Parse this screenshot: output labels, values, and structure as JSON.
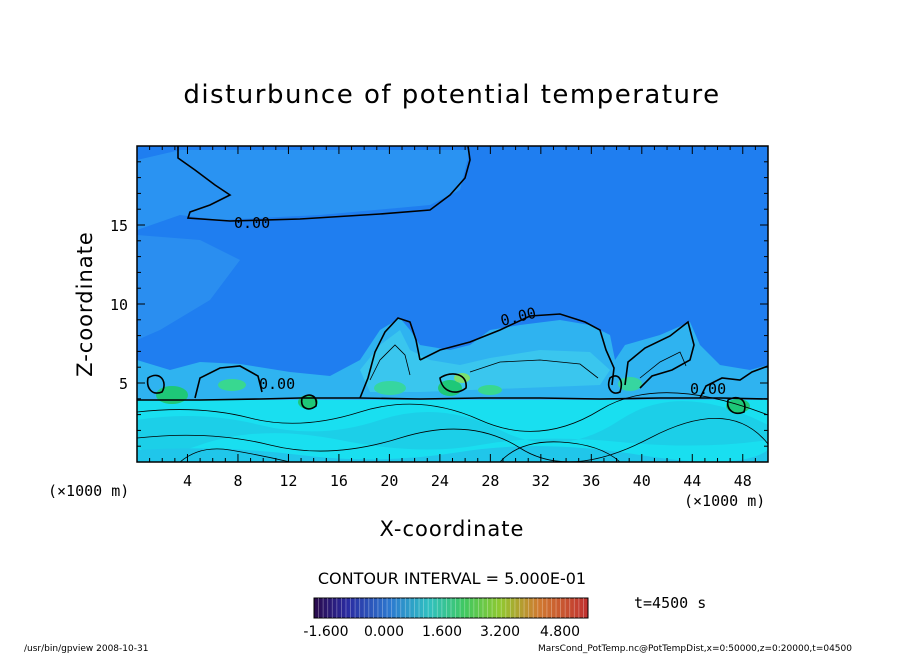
{
  "chart_data": {
    "type": "heatmap",
    "title": "disturbunce of potential temperature",
    "xlabel": "X-coordinate",
    "ylabel": "Z-coordinate",
    "x_unit": "(×1000 m)",
    "y_unit": "(×1000 m)",
    "xlim": [
      0,
      50
    ],
    "ylim": [
      0,
      20
    ],
    "x_ticks": [
      4,
      8,
      12,
      16,
      20,
      24,
      28,
      32,
      36,
      40,
      44,
      48
    ],
    "y_ticks": [
      5,
      10,
      15
    ],
    "contour_label": "0.00",
    "contour_interval_text": "CONTOUR INTERVAL = 5.000E-01",
    "time_text": "t=4500 s",
    "colorbar_ticks": [
      "-1.600",
      "0.000",
      "1.600",
      "3.200",
      "4.800"
    ],
    "colorbar_range": [
      -1.6,
      4.8
    ],
    "colors": {
      "upper_field": "#1f7ef0",
      "mid_field": "#2fb3f0",
      "lower_field": "#19dff0",
      "warm_patch": "#1ec878"
    },
    "footer_left": "/usr/bin/gpview   2008-10-31",
    "footer_right": "MarsCond_PotTemp.nc@PotTempDist,x=0:50000,z=0:20000,t=04500"
  }
}
